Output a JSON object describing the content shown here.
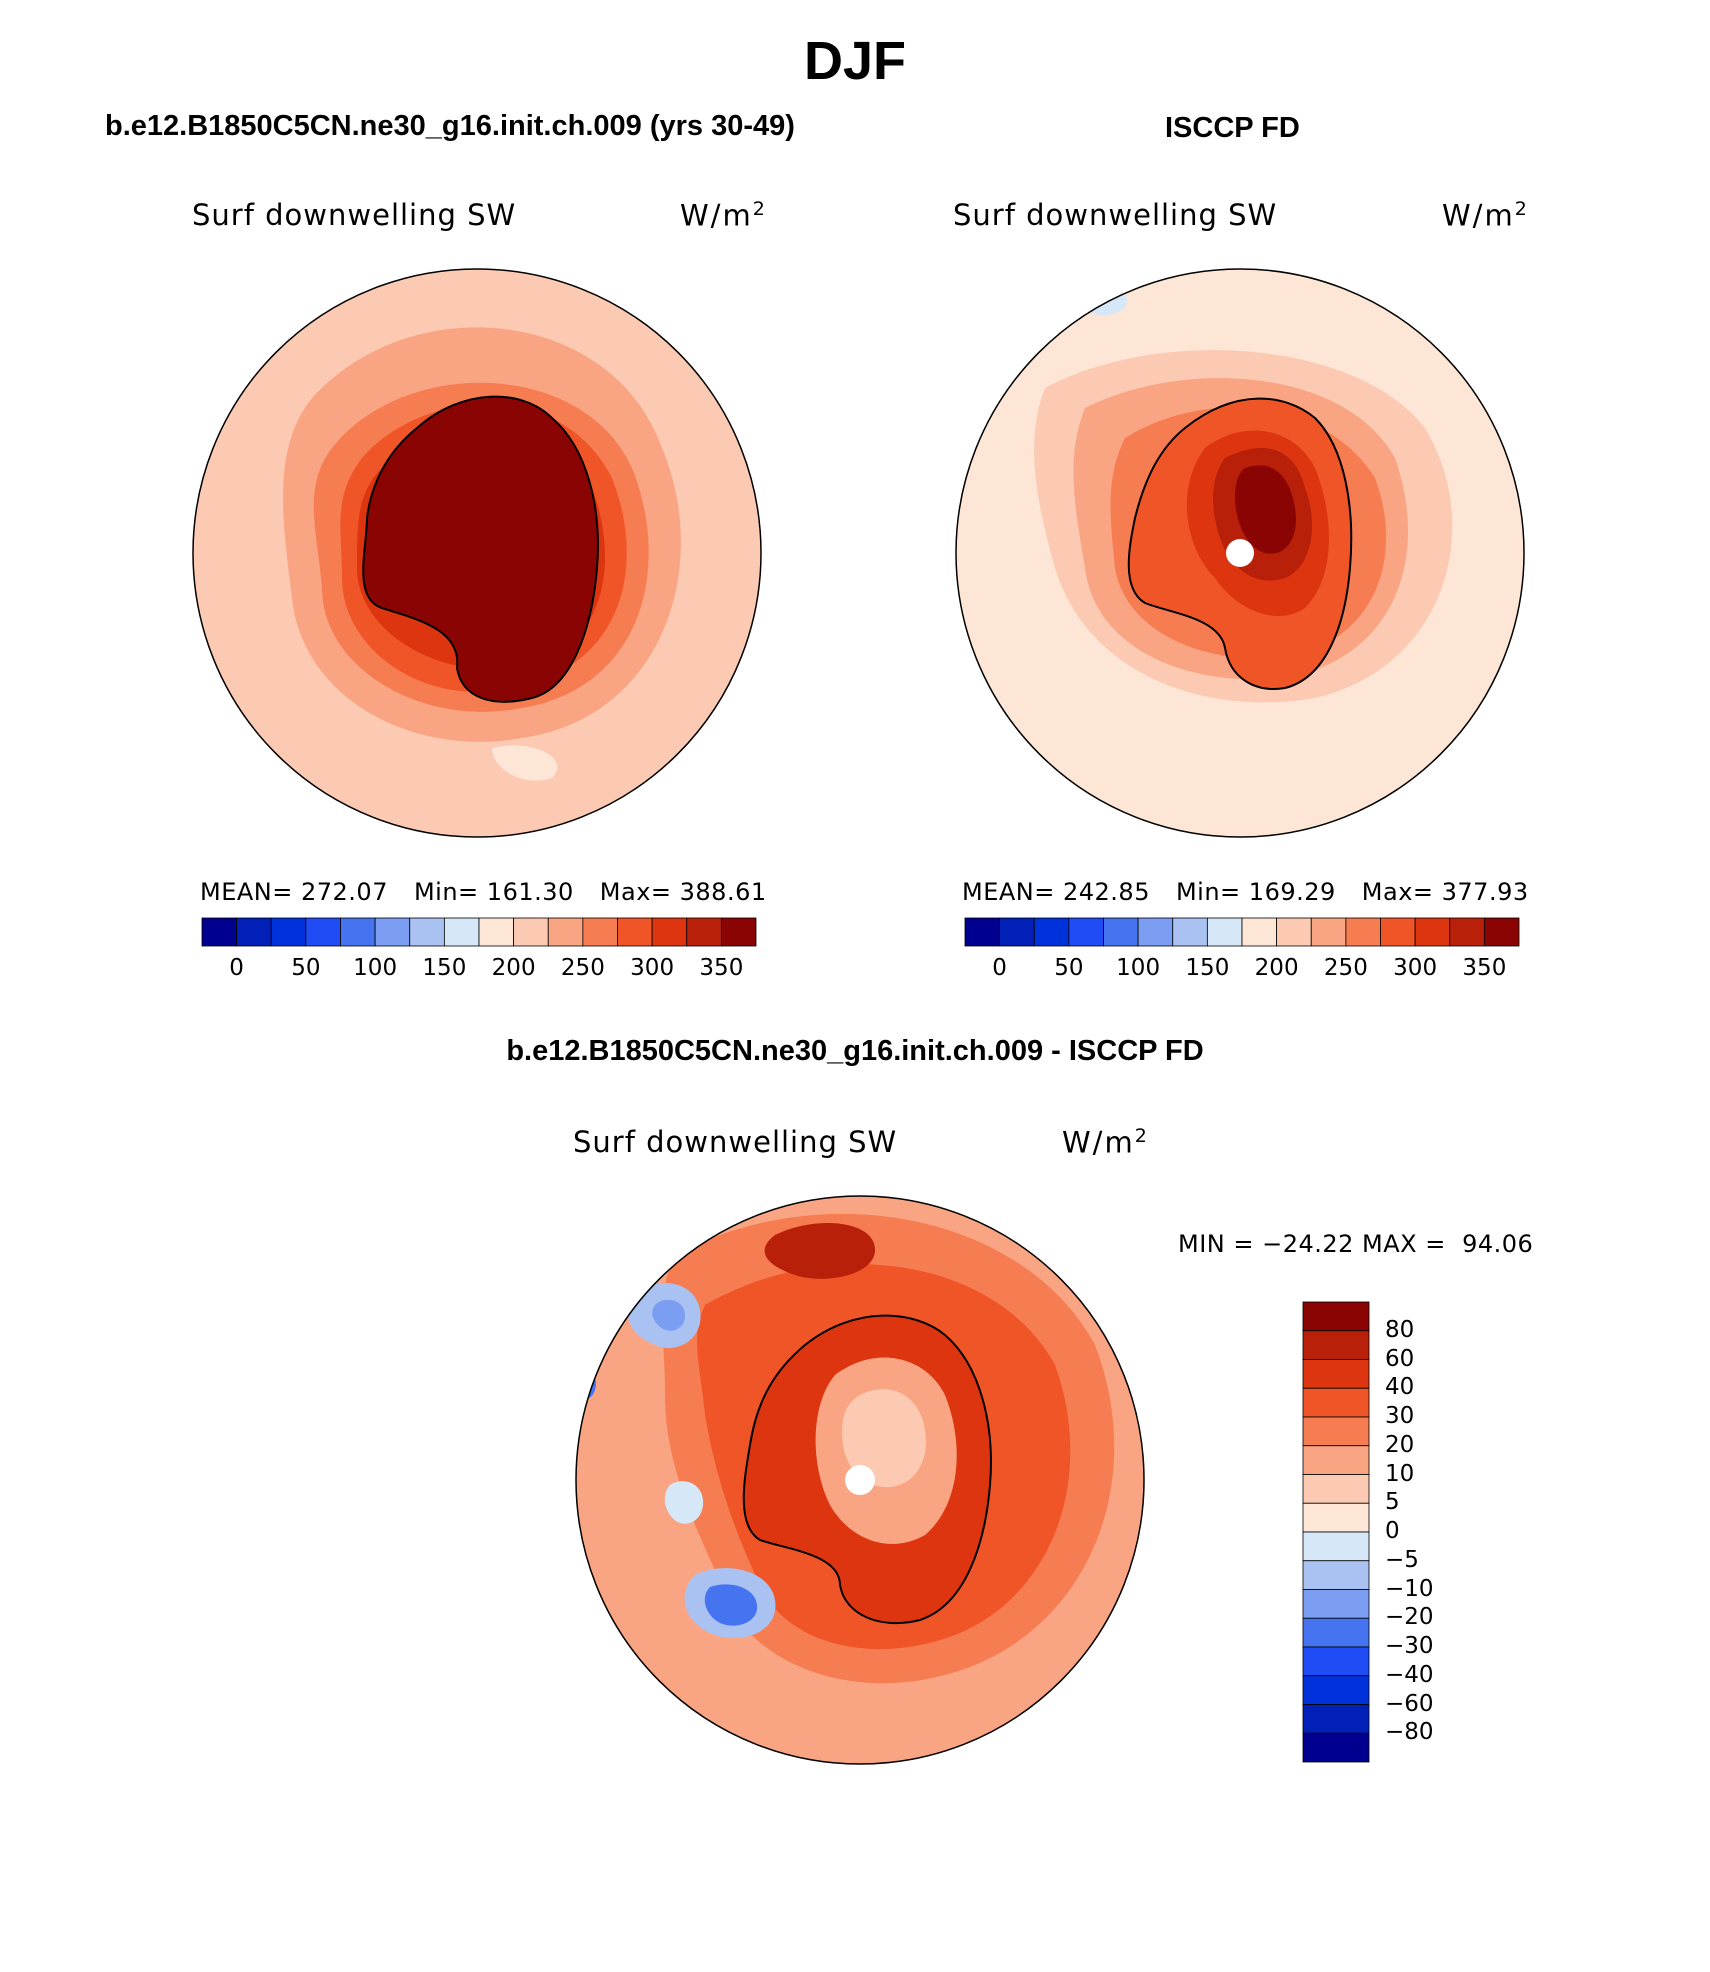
{
  "figure": {
    "title": "DJF"
  },
  "panels": {
    "model": {
      "title": "b.e12.B1850C5CN.ne30_g16.init.ch.009 (yrs 30-49)",
      "variable": "Surf downwelling SW",
      "units_base": "W/m",
      "units_exp": "2",
      "mean_label": "MEAN= 272.07",
      "min_label": "Min= 161.30",
      "max_label": "Max= 388.61"
    },
    "obs": {
      "title": "ISCCP FD",
      "variable": "Surf downwelling SW",
      "units_base": "W/m",
      "units_exp": "2",
      "mean_label": "MEAN= 242.85",
      "min_label": "Min= 169.29",
      "max_label": "Max= 377.93"
    },
    "diff": {
      "title": "b.e12.B1850C5CN.ne30_g16.init.ch.009 - ISCCP FD",
      "variable": "Surf downwelling SW",
      "units_base": "W/m",
      "units_exp": "2",
      "minmax_label": "MIN = −24.22 MAX =  94.06"
    }
  },
  "colorbars": {
    "absolute": {
      "colors": [
        "#00008f",
        "#0020b8",
        "#0032dc",
        "#1f4cf5",
        "#4673f0",
        "#7b9ef2",
        "#a9c2f2",
        "#d6e7f7",
        "#fde6d6",
        "#fccab3",
        "#f9a583",
        "#f67c52",
        "#f05528",
        "#dc3510",
        "#b8200a",
        "#8a0404"
      ],
      "labels": [
        "0",
        "50",
        "100",
        "150",
        "200",
        "250",
        "300",
        "350"
      ]
    },
    "difference": {
      "colors": [
        "#8a0404",
        "#b8200a",
        "#dc3510",
        "#f05528",
        "#f67c52",
        "#f9a583",
        "#fccab3",
        "#fde6d6",
        "#d6e7f7",
        "#a9c2f2",
        "#7b9ef2",
        "#4673f0",
        "#1f4cf5",
        "#0032dc",
        "#0020b8",
        "#00008f"
      ],
      "labels": [
        "80",
        "60",
        "40",
        "30",
        "20",
        "10",
        "5",
        "0",
        "−5",
        "−10",
        "−20",
        "−30",
        "−40",
        "−60",
        "−80"
      ]
    }
  },
  "map_data": {
    "projection": "south polar stereographic",
    "field": "Surf downwelling SW",
    "season": "DJF"
  }
}
